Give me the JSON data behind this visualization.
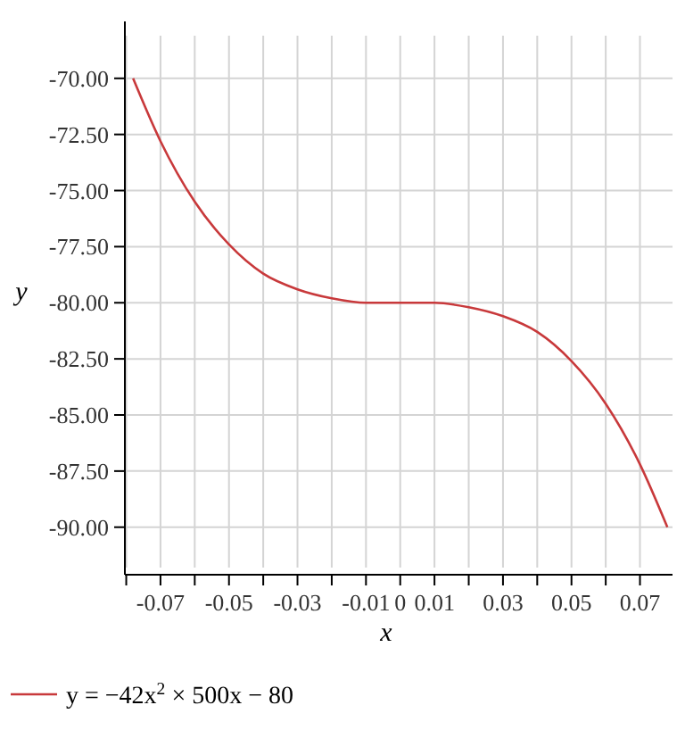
{
  "chart_data": {
    "type": "line",
    "xlabel": "x",
    "ylabel": "y",
    "x": [
      -0.078,
      -0.07,
      -0.06,
      -0.05,
      -0.04,
      -0.03,
      -0.02,
      -0.01,
      0,
      0.01,
      0.02,
      0.03,
      0.04,
      0.05,
      0.06,
      0.07,
      0.078
    ],
    "series": [
      {
        "name": "y = −42x$^{2}$ × 500x − 80",
        "color": "#c8393b",
        "values": [
          -70.0,
          -72.8,
          -75.5,
          -77.4,
          -78.7,
          -79.4,
          -79.8,
          -80.0,
          -80.0,
          -80.0,
          -80.2,
          -80.6,
          -81.3,
          -82.6,
          -84.5,
          -87.2,
          -90.0
        ]
      }
    ],
    "xlim": [
      -0.0804,
      0.0795
    ],
    "ylim": [
      -91.8,
      -68.1
    ],
    "xticks": [
      {
        "value": -0.08,
        "label": null
      },
      {
        "value": -0.07,
        "label": "-0.07"
      },
      {
        "value": -0.06,
        "label": null
      },
      {
        "value": -0.05,
        "label": "-0.05"
      },
      {
        "value": -0.04,
        "label": null
      },
      {
        "value": -0.03,
        "label": "-0.03"
      },
      {
        "value": -0.02,
        "label": null
      },
      {
        "value": -0.01,
        "label": "-0.01"
      },
      {
        "value": 0,
        "label": "0"
      },
      {
        "value": 0.01,
        "label": "0.01"
      },
      {
        "value": 0.02,
        "label": null
      },
      {
        "value": 0.03,
        "label": "0.03"
      },
      {
        "value": 0.04,
        "label": null
      },
      {
        "value": 0.05,
        "label": "0.05"
      },
      {
        "value": 0.06,
        "label": null
      },
      {
        "value": 0.07,
        "label": "0.07"
      }
    ],
    "yticks": [
      {
        "value": -70,
        "label": "-70.00"
      },
      {
        "value": -72.5,
        "label": "-72.50"
      },
      {
        "value": -75,
        "label": "-75.00"
      },
      {
        "value": -77.5,
        "label": "-77.50"
      },
      {
        "value": -80,
        "label": "-80.00"
      },
      {
        "value": -82.5,
        "label": "-82.50"
      },
      {
        "value": -85,
        "label": "-85.00"
      },
      {
        "value": -87.5,
        "label": "-87.50"
      },
      {
        "value": -90,
        "label": "-90.00"
      }
    ],
    "grid": true,
    "legend": "bottom left",
    "marker": "none",
    "line_style": "solid"
  }
}
